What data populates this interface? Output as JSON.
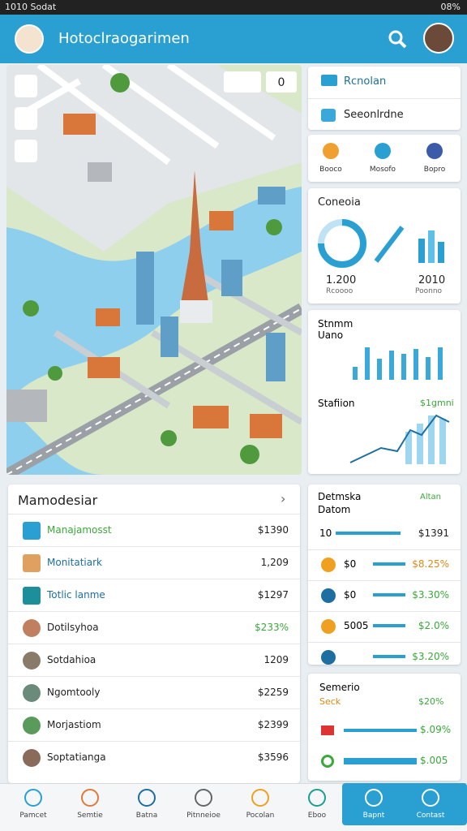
{
  "status": {
    "time": "1010 Sodat",
    "battery": "08%"
  },
  "header": {
    "title": "Hotoclraogarimen"
  },
  "map_controls": {
    "button": "0"
  },
  "quick_list": [
    "Rcnolan",
    "Seeonlrdne"
  ],
  "shortcuts": [
    "Booco",
    "Mosofo",
    "Bopro"
  ],
  "card_overview": {
    "title": "Coneoia",
    "stats": [
      "1.200",
      "2010"
    ],
    "captions": [
      "Rcoooo",
      "Poonno"
    ]
  },
  "card_stats": {
    "title": "Stnmm",
    "subtitle": "Uano",
    "label": "Stafiion",
    "badge": "$1gmni"
  },
  "list": {
    "title": "Mamodesiar",
    "rows": [
      {
        "name": "Manajamosst",
        "value": "$1390"
      },
      {
        "name": "Monitatiark",
        "value": "1,209"
      },
      {
        "name": "Totlic lanme",
        "value": "$1297"
      },
      {
        "name": "Dotilsyhoa",
        "value": "$233%"
      },
      {
        "name": "Sotdahioa",
        "value": "1209"
      },
      {
        "name": "Ngomtooly",
        "value": "$2259"
      },
      {
        "name": "Morjastiom",
        "value": "$2399"
      },
      {
        "name": "Soptatianga",
        "value": "$3596"
      }
    ]
  },
  "card_data": {
    "title": "Detmska",
    "subtitle": "Datom",
    "link": "Altan",
    "rows": [
      {
        "label": "10",
        "value": "$1391"
      },
      {
        "label": "$0",
        "value": "$8.25%"
      },
      {
        "label": "$0",
        "value": "$3.30%"
      },
      {
        "label": "5005",
        "value": "$2.0%"
      },
      {
        "value": "$3.20%"
      }
    ]
  },
  "card_scenario": {
    "title": "Semerio",
    "sub": "Seck",
    "badge": "$20%",
    "rows": [
      "$.09%",
      "$.005"
    ]
  },
  "nav": [
    "Pamcet",
    "Semtie",
    "Batna",
    "Pitnneioe",
    "Pocolan",
    "Eboo",
    "Bapnt",
    "Contast"
  ]
}
